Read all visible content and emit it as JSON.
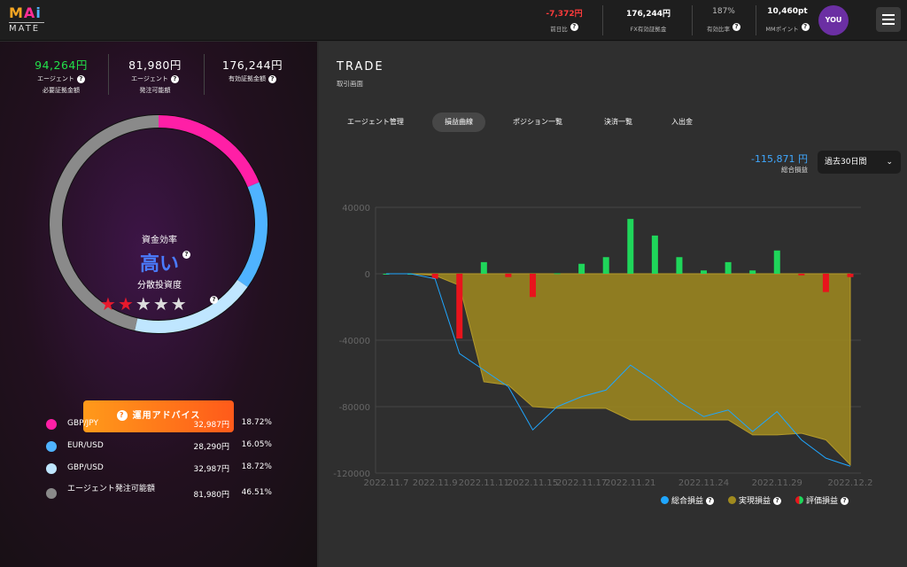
{
  "header": {
    "logo_top": "MAi",
    "logo_bottom": "MATE",
    "stats": [
      {
        "value": "-7,372円",
        "label": "前日比",
        "help": "?",
        "value_color": "#ff3b3b"
      },
      {
        "value": "176,244円",
        "label": "FX有効証拠金",
        "help": ""
      },
      {
        "value": "187%",
        "label": "有効比率",
        "help": "?"
      },
      {
        "value": "10,460pt",
        "label": "MMポイント",
        "help": "?"
      }
    ],
    "avatar_label": "YOU",
    "menu_icon": "hamburger-icon"
  },
  "account": [
    {
      "value": "94,264円",
      "line1": "エージェント",
      "line2": "必要証拠金額",
      "color": "#22e04a"
    },
    {
      "value": "81,980円",
      "line1": "エージェント",
      "line2": "発注可能額",
      "color": "#ffffff"
    },
    {
      "value": "176,244円",
      "line1": "有効証拠金額",
      "line2": "",
      "color": "#ffffff"
    }
  ],
  "gauge": {
    "title": "資金効率",
    "value": "高い",
    "diversification_title": "分散投資度",
    "stars_filled": 2,
    "stars_total": 5
  },
  "advice_button": "運用アドバイス",
  "allocation": [
    {
      "name": "GBP/JPY",
      "amount": "32,987円",
      "pct": "18.72%",
      "color": "#ff1fa6",
      "value": 18.72
    },
    {
      "name": "EUR/USD",
      "amount": "28,290円",
      "pct": "16.05%",
      "color": "#4fb3ff",
      "value": 16.05
    },
    {
      "name": "GBP/USD",
      "amount": "32,987円",
      "pct": "18.72%",
      "color": "#bfe6ff",
      "value": 18.72
    },
    {
      "name": "エージェント発注可能額",
      "amount": "81,980円",
      "pct": "46.51%",
      "color": "#8a8a8a",
      "value": 46.51
    }
  ],
  "trade": {
    "title": "TRADE",
    "subtitle": "取引画面",
    "tabs": [
      "エージェント管理",
      "損益曲線",
      "ポジション一覧",
      "決済一覧",
      "入出金"
    ],
    "active_tab": 1,
    "total_value": "-115,871 円",
    "total_label": "総合損益",
    "period": "過去30日間"
  },
  "chart_data": {
    "type": "bar",
    "x": [
      "2022.11.7",
      "2022.11.8",
      "2022.11.9",
      "2022.11.10",
      "2022.11.11",
      "2022.11.14",
      "2022.11.15",
      "2022.11.16",
      "2022.11.17",
      "2022.11.18",
      "2022.11.21",
      "2022.11.22",
      "2022.11.23",
      "2022.11.24",
      "2022.11.25",
      "2022.11.28",
      "2022.11.29",
      "2022.11.30",
      "2022.12.1",
      "2022.12.2"
    ],
    "x_tick_labels": [
      "2022.11.7",
      "2022.11.9",
      "2022.11.11",
      "2022.11.15",
      "2022.11.17",
      "2022.11.21",
      "2022.11.24",
      "2022.11.29",
      "2022.12.2"
    ],
    "y_ticks": [
      40000,
      0,
      -40000,
      -80000,
      -120000
    ],
    "ylim": [
      -120000,
      40000
    ],
    "grid": true,
    "legend_position": "bottom-right",
    "series": [
      {
        "name": "総合損益",
        "kind": "line",
        "color": "#1fa6ff",
        "values": [
          0,
          0,
          -3000,
          -48000,
          -58000,
          -68000,
          -94000,
          -80000,
          -74000,
          -70000,
          -55000,
          -65000,
          -77000,
          -86000,
          -82000,
          -95000,
          -83000,
          -100000,
          -111000,
          -115871
        ]
      },
      {
        "name": "実現損益",
        "kind": "area",
        "color": "#a08a1e",
        "values": [
          0,
          0,
          -1000,
          -7000,
          -65000,
          -67000,
          -80000,
          -81000,
          -81000,
          -81000,
          -88000,
          -88000,
          -88000,
          -88000,
          -88000,
          -97000,
          -97000,
          -96000,
          -100000,
          -115000
        ]
      },
      {
        "name": "評価損益",
        "kind": "bar",
        "color_pos": "#1fd65a",
        "color_neg": "#e8141c",
        "values": [
          0,
          0,
          -3000,
          -39000,
          7000,
          -2000,
          -14000,
          300,
          6000,
          10000,
          33000,
          23000,
          10000,
          2000,
          7000,
          2000,
          14000,
          -1000,
          -11000,
          -2000
        ]
      }
    ]
  }
}
